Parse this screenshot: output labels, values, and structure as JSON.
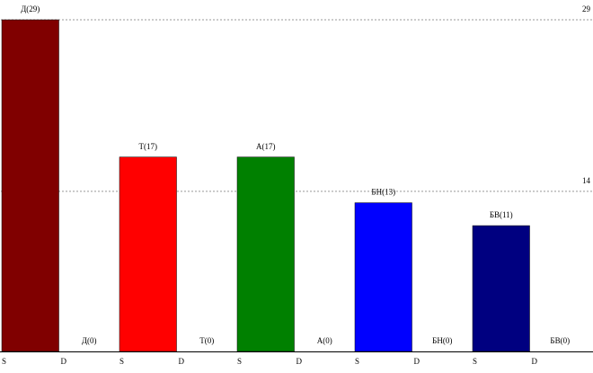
{
  "chart_data": {
    "type": "bar",
    "categories": [
      "S",
      "D",
      "S",
      "D",
      "S",
      "D",
      "S",
      "D",
      "S",
      "D"
    ],
    "values": [
      29,
      0,
      17,
      0,
      17,
      0,
      13,
      0,
      11,
      0
    ],
    "value_labels": [
      "Д(29)",
      "Д(0)",
      "Т(17)",
      "Т(0)",
      "А(17)",
      "А(0)",
      "БН(13)",
      "БН(0)",
      "БВ(11)",
      "БВ(0)"
    ],
    "colors": [
      "#800000",
      "#800000",
      "#ff0000",
      "#ff0000",
      "#008000",
      "#008000",
      "#0000ff",
      "#0000ff",
      "#000080",
      "#000080"
    ],
    "ylim": [
      0,
      29
    ],
    "yticks": [
      14,
      29
    ],
    "grid": true
  }
}
